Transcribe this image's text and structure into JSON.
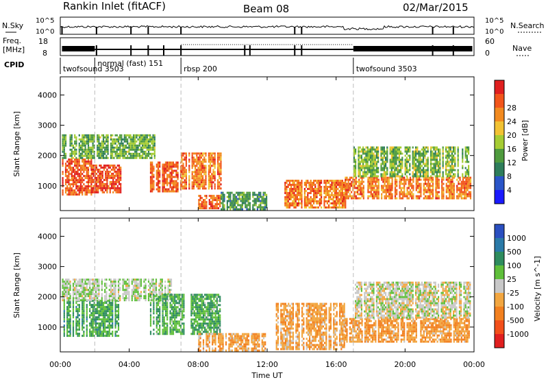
{
  "header": {
    "station": "Rankin Inlet (fitACF)",
    "beam": "Beam 08",
    "date": "02/Mar/2015"
  },
  "strip_panels": {
    "nsky_label": "N.Sky",
    "nsky_ticks": [
      "10^5",
      "10^0"
    ],
    "nsearch_label": "N.Search",
    "nsearch_ticks": [
      "10^5",
      "10^0"
    ],
    "freq_label": "Freq.",
    "freq_unit": "[MHz]",
    "freq_ticks": [
      "18",
      "8"
    ],
    "nave_label": "Nave",
    "nave_ticks": [
      "60",
      "0"
    ],
    "cpid_label": "CPID"
  },
  "cpid_segments": [
    {
      "label": "twofsound 3503",
      "start_h": 0.0,
      "end_h": 2.0
    },
    {
      "label": "normal (fast) 151",
      "start_h": 2.0,
      "end_h": 7.0
    },
    {
      "label": "rbsp 200",
      "start_h": 7.0,
      "end_h": 17.0
    },
    {
      "label": "twofsound 3503",
      "start_h": 17.0,
      "end_h": 24.0
    }
  ],
  "x_axis": {
    "label": "Time UT",
    "ticks": [
      "00:00",
      "04:00",
      "08:00",
      "12:00",
      "16:00",
      "20:00",
      "00:00"
    ],
    "range_hours": [
      0,
      24
    ]
  },
  "power_panel": {
    "ylabel": "Slant Range [km]",
    "yticks": [
      "1000",
      "2000",
      "3000",
      "4000"
    ],
    "colorbar_label": "Power [dB]",
    "colorbar_ticks": [
      "4",
      "8",
      "12",
      "16",
      "20",
      "24",
      "28"
    ],
    "colors": [
      "#1a1aff",
      "#2a55c8",
      "#2e7d5b",
      "#4f9b3e",
      "#a6cc33",
      "#f2c233",
      "#f28a1f",
      "#f2551a",
      "#e01f1f"
    ]
  },
  "velocity_panel": {
    "ylabel": "Slant Range [km]",
    "yticks": [
      "1000",
      "2000",
      "3000",
      "4000"
    ],
    "colorbar_label": "Velocity [m s^-1]",
    "colorbar_ticks": [
      "1000",
      "500",
      "100",
      "25",
      "-25",
      "-100",
      "-500",
      "-1000"
    ],
    "colors": [
      "#2a4fc0",
      "#2a7aa8",
      "#2e8c5e",
      "#5fbf3a",
      "#c8c8c8",
      "#f2a640",
      "#f2801f",
      "#f24f1a",
      "#e01f1f"
    ]
  },
  "chart_data": {
    "type": "heatmap",
    "x_range_hours": [
      0,
      24
    ],
    "y_range_km": [
      180,
      4600
    ],
    "power_scale_db": [
      0,
      30
    ],
    "velocity_scale_ms": [
      -1000,
      1000
    ],
    "power_regions": [
      {
        "t0": 0.1,
        "t1": 1.8,
        "r0": 700,
        "r1": 1900,
        "db": 26
      },
      {
        "t0": 1.8,
        "t1": 3.5,
        "r0": 800,
        "r1": 1700,
        "db": 27
      },
      {
        "t0": 0.1,
        "t1": 5.5,
        "r0": 1900,
        "r1": 2700,
        "db": 12
      },
      {
        "t0": 5.2,
        "t1": 7.0,
        "r0": 800,
        "r1": 1800,
        "db": 26
      },
      {
        "t0": 7.0,
        "t1": 9.3,
        "r0": 900,
        "r1": 2100,
        "db": 24
      },
      {
        "t0": 8.0,
        "t1": 9.3,
        "r0": 250,
        "r1": 700,
        "db": 26
      },
      {
        "t0": 9.3,
        "t1": 12.0,
        "r0": 200,
        "r1": 800,
        "db": 10
      },
      {
        "t0": 13.0,
        "t1": 16.5,
        "r0": 300,
        "r1": 1200,
        "db": 24
      },
      {
        "t0": 16.5,
        "t1": 23.8,
        "r0": 600,
        "r1": 1300,
        "db": 24
      },
      {
        "t0": 17.0,
        "t1": 23.8,
        "r0": 1300,
        "r1": 2300,
        "db": 13
      }
    ],
    "velocity_regions": [
      {
        "t0": 0.1,
        "t1": 3.5,
        "r0": 700,
        "r1": 1900,
        "v": 400
      },
      {
        "t0": 0.1,
        "t1": 6.5,
        "r0": 1900,
        "r1": 2600,
        "v": 80
      },
      {
        "t0": 5.2,
        "t1": 9.3,
        "r0": 800,
        "r1": 2100,
        "v": 350
      },
      {
        "t0": 8.0,
        "t1": 12.0,
        "r0": 250,
        "r1": 800,
        "v": -300
      },
      {
        "t0": 12.5,
        "t1": 16.5,
        "r0": 300,
        "r1": 1800,
        "v": -300
      },
      {
        "t0": 16.5,
        "t1": 23.8,
        "r0": 500,
        "r1": 1300,
        "v": -350
      },
      {
        "t0": 17.0,
        "t1": 23.8,
        "r0": 1300,
        "r1": 2500,
        "v": 0
      }
    ]
  }
}
